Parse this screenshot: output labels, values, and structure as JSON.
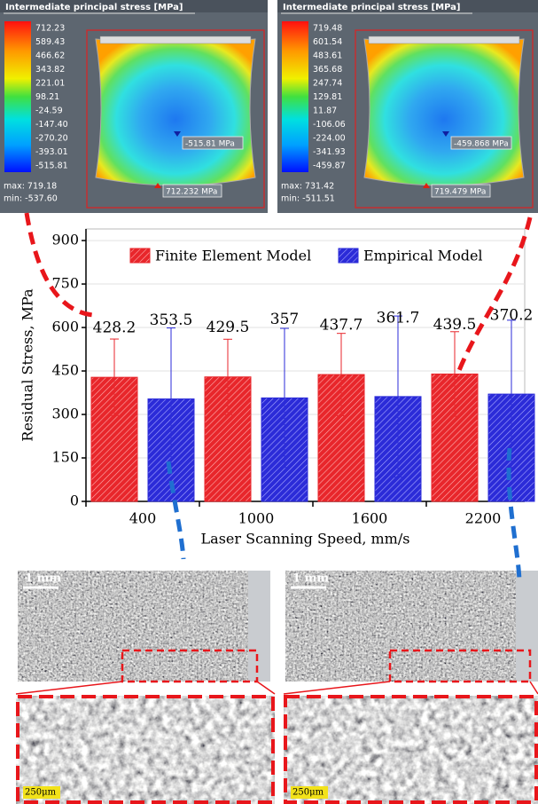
{
  "chart_data": {
    "type": "bar",
    "categories": [
      "400",
      "1000",
      "1600",
      "2200"
    ],
    "series": [
      {
        "name": "Finite Element Model",
        "color": "#e8262b",
        "values": [
          428.2,
          429.5,
          437.7,
          439.5
        ],
        "errors": [
          132,
          130,
          142,
          146
        ]
      },
      {
        "name": "Empirical Model",
        "color": "#2b2bd8",
        "values": [
          353.5,
          357,
          361.7,
          370.2
        ],
        "errors": [
          245,
          240,
          278,
          255
        ]
      }
    ],
    "xlabel": "Laser Scanning Speed, mm/s",
    "ylabel": "Residual Stress, MPa",
    "ylim": [
      0,
      940
    ],
    "yticks": [
      0,
      150,
      300,
      450,
      600,
      750,
      900
    ],
    "legend": "top-right",
    "grid": true
  },
  "fea_panels": [
    {
      "title": "Intermediate principal stress [MPa]",
      "scale_labels": [
        "712.23",
        "589.43",
        "466.62",
        "343.82",
        "221.01",
        "98.21",
        "-24.59",
        "-147.40",
        "-270.20",
        "-393.01",
        "-515.81"
      ],
      "max": "max:  719.18",
      "min": "min:  -537.60",
      "probe_min": "-515.81 MPa",
      "probe_max": "712.232 MPa"
    },
    {
      "title": "Intermediate principal stress [MPa]",
      "scale_labels": [
        "719.48",
        "601.54",
        "483.61",
        "365.68",
        "247.74",
        "129.81",
        "11.87",
        "-106.06",
        "-224.00",
        "-341.93",
        "-459.87"
      ],
      "max": "max:  731.42",
      "min": "min:  -511.51",
      "probe_min": "-459.868 MPa",
      "probe_max": "719.479 MPa"
    }
  ],
  "micrographs": [
    {
      "scale": "1 mm",
      "zoom_scale": "250μm"
    },
    {
      "scale": "1 mm",
      "zoom_scale": "250μm"
    }
  ]
}
